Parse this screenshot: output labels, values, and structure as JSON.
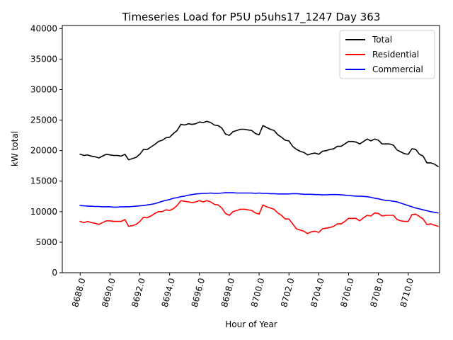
{
  "chart_data": {
    "type": "line",
    "title": "Timeseries Load for P5U p5uhs17_1247  Day 363",
    "xlabel": "Hour of Year",
    "ylabel": "kW total",
    "xlim": [
      8686.8,
      8712.1
    ],
    "ylim": [
      0,
      40500
    ],
    "xticks": [
      8688,
      8690,
      8692,
      8694,
      8696,
      8698,
      8700,
      8702,
      8704,
      8706,
      8708,
      8710
    ],
    "xtick_labels": [
      "8688.0",
      "8690.0",
      "8692.0",
      "8694.0",
      "8696.0",
      "8698.0",
      "8700.0",
      "8702.0",
      "8704.0",
      "8706.0",
      "8708.0",
      "8710.0"
    ],
    "yticks": [
      0,
      5000,
      10000,
      15000,
      20000,
      25000,
      30000,
      35000,
      40000
    ],
    "ytick_labels": [
      "0",
      "5000",
      "10000",
      "15000",
      "20000",
      "25000",
      "30000",
      "35000",
      "40000"
    ],
    "x_start": 8688,
    "x_step": 0.25,
    "legend_position": "top-right",
    "grid": false,
    "series": [
      {
        "name": "Total",
        "color": "#000000",
        "values": [
          19400,
          19200,
          19300,
          19100,
          19000,
          18800,
          19100,
          19400,
          19300,
          19200,
          19200,
          19100,
          19400,
          18500,
          18700,
          18900,
          19400,
          20200,
          20200,
          20600,
          21000,
          21500,
          21700,
          22100,
          22200,
          22800,
          23300,
          24300,
          24200,
          24400,
          24300,
          24400,
          24700,
          24600,
          24800,
          24600,
          24200,
          24100,
          23700,
          22700,
          22500,
          23100,
          23300,
          23500,
          23500,
          23400,
          23300,
          22800,
          22600,
          24100,
          23800,
          23500,
          23300,
          22600,
          22200,
          21700,
          21600,
          20700,
          20200,
          19900,
          19700,
          19300,
          19500,
          19600,
          19400,
          19900,
          20000,
          20200,
          20300,
          20700,
          20700,
          21100,
          21500,
          21500,
          21400,
          21100,
          21500,
          21900,
          21600,
          21900,
          21700,
          21100,
          21100,
          21100,
          20900,
          20100,
          19800,
          19500,
          19400,
          20300,
          20200,
          19400,
          19100,
          18000,
          18000,
          17800,
          17400
        ]
      },
      {
        "name": "Residential",
        "color": "#ff0000",
        "values": [
          8400,
          8200,
          8400,
          8200,
          8100,
          7900,
          8200,
          8500,
          8500,
          8400,
          8400,
          8400,
          8700,
          7600,
          7700,
          7900,
          8400,
          9100,
          9000,
          9300,
          9700,
          10000,
          10000,
          10300,
          10200,
          10500,
          11000,
          11800,
          11700,
          11600,
          11500,
          11600,
          11800,
          11600,
          11800,
          11600,
          11200,
          11100,
          10600,
          9700,
          9400,
          10000,
          10200,
          10400,
          10400,
          10300,
          10200,
          9800,
          9600,
          11100,
          10800,
          10600,
          10400,
          9800,
          9400,
          8800,
          8800,
          8000,
          7200,
          7000,
          6800,
          6400,
          6700,
          6800,
          6600,
          7200,
          7300,
          7400,
          7600,
          8000,
          8000,
          8400,
          8900,
          8900,
          8900,
          8500,
          9000,
          9400,
          9300,
          9800,
          9700,
          9300,
          9400,
          9400,
          9400,
          8700,
          8500,
          8400,
          8400,
          9500,
          9600,
          9200,
          8800,
          7900,
          8000,
          7800,
          7600
        ]
      },
      {
        "name": "Commercial",
        "color": "#0000ff",
        "values": [
          11000,
          10950,
          10900,
          10900,
          10850,
          10850,
          10800,
          10800,
          10800,
          10750,
          10750,
          10800,
          10800,
          10800,
          10850,
          10900,
          10950,
          11000,
          11100,
          11200,
          11300,
          11500,
          11700,
          11850,
          12000,
          12200,
          12300,
          12450,
          12550,
          12700,
          12800,
          12900,
          12950,
          13000,
          13000,
          13050,
          13000,
          13000,
          13050,
          13100,
          13100,
          13100,
          13050,
          13050,
          13050,
          13050,
          13050,
          13000,
          13050,
          13000,
          13000,
          12950,
          12950,
          12900,
          12900,
          12900,
          12900,
          12950,
          12950,
          12900,
          12850,
          12850,
          12850,
          12800,
          12800,
          12750,
          12750,
          12800,
          12800,
          12800,
          12750,
          12700,
          12650,
          12600,
          12550,
          12550,
          12500,
          12450,
          12350,
          12200,
          12100,
          11950,
          11850,
          11800,
          11700,
          11600,
          11400,
          11200,
          11000,
          10800,
          10600,
          10450,
          10300,
          10150,
          10000,
          9900,
          9800
        ]
      }
    ]
  }
}
